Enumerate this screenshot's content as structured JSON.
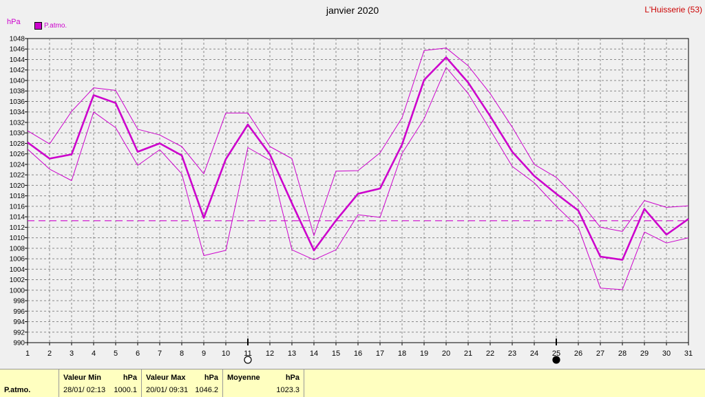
{
  "header": {
    "title": "janvier 2020",
    "location": "L'Huisserie (53)",
    "unit": "hPa",
    "legend_label": "P.atmo."
  },
  "footer": {
    "param_label": "P.atmo.",
    "min_label": "Valeur Min",
    "min_unit": "hPa",
    "min_time": "28/01/  02:13",
    "min_value": "1000.1",
    "max_label": "Valeur Max",
    "max_unit": "hPa",
    "max_time": "20/01/  09:31",
    "max_value": "1046.2",
    "avg_label": "Moyenne",
    "avg_unit": "hPa",
    "avg_value": "1023.3"
  },
  "colors": {
    "series": "#cc00cc",
    "grid": "#888888",
    "background": "#f0f0f0",
    "footer": "#ffffc0"
  },
  "chart_data": {
    "type": "line",
    "ylim": [
      990,
      1048
    ],
    "ytick_step": 2,
    "yticks": [
      "990",
      "992",
      "994",
      "996",
      "998",
      "1000",
      "1002",
      "1004",
      "1006",
      "1008",
      "1010",
      "1012",
      "1014",
      "1016",
      "1018",
      "1020",
      "1022",
      "1024",
      "1026",
      "1028",
      "1030",
      "1032",
      "1034",
      "1036",
      "1038",
      "1040",
      "1042",
      "1044",
      "1046",
      "1048"
    ],
    "x": [
      1,
      2,
      3,
      4,
      5,
      6,
      7,
      8,
      9,
      10,
      11,
      12,
      13,
      14,
      15,
      16,
      17,
      18,
      19,
      20,
      21,
      22,
      23,
      24,
      25,
      26,
      27,
      28,
      29,
      30,
      31
    ],
    "xtick_labels": [
      "1",
      "2",
      "3",
      "4",
      "5",
      "6",
      "7",
      "8",
      "9",
      "10",
      "11",
      "12",
      "13",
      "14",
      "15",
      "16",
      "17",
      "18",
      "19",
      "20",
      "21",
      "22",
      "23",
      "24",
      "25",
      "26",
      "27",
      "28",
      "29",
      "30",
      "31"
    ],
    "grid": true,
    "legend_position": "top-left",
    "series": [
      {
        "name": "P.atmo.",
        "role": "mean",
        "values": [
          1028.2,
          1025.1,
          1025.9,
          1037.2,
          1035.7,
          1026.4,
          1028.0,
          1025.7,
          1013.8,
          1025.0,
          1031.6,
          1025.9,
          1016.6,
          1007.6,
          1013.3,
          1018.4,
          1019.4,
          1027.8,
          1040.1,
          1044.4,
          1039.6,
          1033.2,
          1026.4,
          1021.8,
          1018.4,
          1015.2,
          1006.4,
          1005.8,
          1015.5,
          1010.6,
          1013.6
        ]
      },
      {
        "role": "max",
        "values": [
          1030.4,
          1027.9,
          1034.1,
          1038.6,
          1038.1,
          1030.7,
          1029.6,
          1027.4,
          1022.2,
          1033.8,
          1033.8,
          1027.4,
          1025.1,
          1010.4,
          1022.7,
          1022.8,
          1026.2,
          1032.9,
          1045.7,
          1046.2,
          1042.8,
          1037.5,
          1031.1,
          1024.0,
          1021.5,
          1017.3,
          1012.0,
          1011.2,
          1017.1,
          1015.8,
          1016.1
        ]
      },
      {
        "role": "min",
        "values": [
          1026.9,
          1023.1,
          1020.9,
          1034.0,
          1031.0,
          1023.8,
          1026.8,
          1022.2,
          1006.6,
          1007.6,
          1027.2,
          1024.8,
          1007.7,
          1005.8,
          1007.7,
          1014.4,
          1013.9,
          1026.1,
          1032.7,
          1042.5,
          1037.5,
          1030.6,
          1023.6,
          1020.5,
          1016.0,
          1012.0,
          1000.4,
          1000.1,
          1011.1,
          1009.0,
          1010.0
        ]
      }
    ],
    "reference_lines": [
      {
        "role": "average",
        "value": 1013.25,
        "style": "dashed"
      }
    ],
    "moon_phases": [
      {
        "day": 11,
        "phase": "full"
      },
      {
        "day": 25,
        "phase": "new"
      }
    ]
  }
}
